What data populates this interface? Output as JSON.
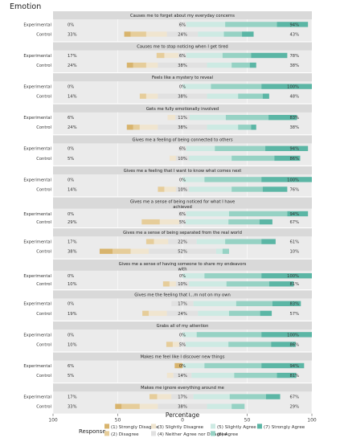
{
  "chart_data": {
    "type": "bar",
    "orientation": "horizontal",
    "stacked": "diverging",
    "title": "Emotion",
    "xlabel": "Percentage",
    "xlim": [
      -100,
      100
    ],
    "xticks": [
      "100",
      "50",
      "0",
      "50",
      "100"
    ],
    "grid": true,
    "legend_position": "bottom",
    "legend_title": "Response",
    "responses": [
      {
        "label": "(1) Strongly Disagree",
        "color": "#d8b46d"
      },
      {
        "label": "(2) Disagree",
        "color": "#e6cd9a"
      },
      {
        "label": "(3) Slightly Disagree",
        "color": "#f0e5cf"
      },
      {
        "label": "(4) Neither Agree nor Disagree",
        "color": "#e1e1e1"
      },
      {
        "label": "(5) Slightly Agree",
        "color": "#cdeae3"
      },
      {
        "label": "(6) Agree",
        "color": "#96d2c4"
      },
      {
        "label": "(7) Strongly Agree",
        "color": "#5bb6a5"
      }
    ],
    "groups": [
      "Experimental",
      "Control"
    ],
    "panels": [
      {
        "title": "Causes me to forget about my everyday concerns",
        "rows": [
          {
            "group": "Experimental",
            "left": "0%",
            "mid": "6%",
            "right": "94%",
            "values": [
              0,
              0,
              0,
              6,
              30,
              40,
              24
            ]
          },
          {
            "group": "Control",
            "left": "33%",
            "mid": "24%",
            "right": "43%",
            "values": [
              5,
              12,
              16,
              24,
              20,
              14,
              9
            ]
          }
        ]
      },
      {
        "title": "Causes me to stop noticing when I get tired",
        "rows": [
          {
            "group": "Experimental",
            "left": "17%",
            "mid": "6%",
            "right": "78%",
            "values": [
              0,
              6,
              11,
              6,
              28,
              22,
              28
            ]
          },
          {
            "group": "Control",
            "left": "24%",
            "mid": "38%",
            "right": "38%",
            "values": [
              5,
              10,
              9,
              38,
              19,
              14,
              5
            ]
          }
        ]
      },
      {
        "title": "Feels like a mystery to reveal",
        "rows": [
          {
            "group": "Experimental",
            "left": "0%",
            "mid": "0%",
            "right": "100%",
            "values": [
              0,
              0,
              0,
              0,
              22,
              39,
              39
            ]
          },
          {
            "group": "Control",
            "left": "14%",
            "mid": "38%",
            "right": "48%",
            "values": [
              0,
              5,
              9,
              38,
              24,
              19,
              5
            ]
          }
        ]
      },
      {
        "title": "Gets me fully emotionally involved",
        "rows": [
          {
            "group": "Experimental",
            "left": "6%",
            "mid": "11%",
            "right": "83%",
            "values": [
              0,
              0,
              6,
              11,
              28,
              33,
              22
            ]
          },
          {
            "group": "Control",
            "left": "24%",
            "mid": "38%",
            "right": "38%",
            "values": [
              5,
              5,
              14,
              38,
              24,
              10,
              4
            ]
          }
        ]
      },
      {
        "title": "Gives me a feeling of being connected to others",
        "rows": [
          {
            "group": "Experimental",
            "left": "0%",
            "mid": "6%",
            "right": "94%",
            "values": [
              0,
              0,
              0,
              6,
              22,
              39,
              33
            ]
          },
          {
            "group": "Control",
            "left": "5%",
            "mid": "10%",
            "right": "86%",
            "values": [
              0,
              0,
              5,
              10,
              33,
              33,
              20
            ]
          }
        ]
      },
      {
        "title": "Gives me a feeling that I want to know what comes next",
        "rows": [
          {
            "group": "Experimental",
            "left": "0%",
            "mid": "0%",
            "right": "100%",
            "values": [
              0,
              0,
              0,
              0,
              17,
              44,
              39
            ]
          },
          {
            "group": "Control",
            "left": "14%",
            "mid": "10%",
            "right": "76%",
            "values": [
              0,
              5,
              9,
              10,
              33,
              24,
              19
            ]
          }
        ]
      },
      {
        "title": "Gives me a sense of being noticed for what I have achieved",
        "rows": [
          {
            "group": "Experimental",
            "left": "0%",
            "mid": "6%",
            "right": "94%",
            "values": [
              0,
              0,
              0,
              6,
              33,
              45,
              16
            ]
          },
          {
            "group": "Control",
            "left": "29%",
            "mid": "5%",
            "right": "67%",
            "values": [
              0,
              14,
              15,
              5,
              33,
              24,
              10
            ]
          }
        ]
      },
      {
        "title": "Gives me a sense of being separated from the real world",
        "rows": [
          {
            "group": "Experimental",
            "left": "17%",
            "mid": "22%",
            "right": "61%",
            "values": [
              0,
              6,
              11,
              22,
              22,
              28,
              11
            ]
          },
          {
            "group": "Control",
            "left": "38%",
            "mid": "52%",
            "right": "10%",
            "values": [
              10,
              14,
              14,
              52,
              5,
              5,
              0
            ]
          }
        ]
      },
      {
        "title": "Gives me a sense of having someone to share my endeavors with",
        "rows": [
          {
            "group": "Experimental",
            "left": "0%",
            "mid": "0%",
            "right": "100%",
            "values": [
              0,
              0,
              0,
              0,
              17,
              44,
              39
            ]
          },
          {
            "group": "Control",
            "left": "10%",
            "mid": "10%",
            "right": "81%",
            "values": [
              0,
              5,
              5,
              10,
              29,
              33,
              19
            ]
          }
        ]
      },
      {
        "title": "Gives me the feeling that I...m not on my own",
        "rows": [
          {
            "group": "Experimental",
            "left": "0%",
            "mid": "17%",
            "right": "83%",
            "values": [
              0,
              0,
              0,
              17,
              33,
              28,
              22
            ]
          },
          {
            "group": "Control",
            "left": "19%",
            "mid": "24%",
            "right": "57%",
            "values": [
              0,
              5,
              14,
              24,
              24,
              24,
              9
            ]
          }
        ]
      },
      {
        "title": "Grabs all of my attention",
        "rows": [
          {
            "group": "Experimental",
            "left": "0%",
            "mid": "0%",
            "right": "100%",
            "values": [
              0,
              0,
              0,
              0,
              11,
              50,
              39
            ]
          },
          {
            "group": "Control",
            "left": "10%",
            "mid": "5%",
            "right": "86%",
            "values": [
              0,
              5,
              5,
              5,
              33,
              33,
              19
            ]
          }
        ]
      },
      {
        "title": "Makes me feel like I discover new things",
        "rows": [
          {
            "group": "Experimental",
            "left": "6%",
            "mid": "0%",
            "right": "94%",
            "values": [
              6,
              0,
              0,
              0,
              17,
              44,
              33
            ]
          },
          {
            "group": "Control",
            "left": "5%",
            "mid": "14%",
            "right": "81%",
            "values": [
              0,
              0,
              5,
              14,
              33,
              33,
              15
            ]
          }
        ]
      },
      {
        "title": "Makes me ignore everything around me",
        "rows": [
          {
            "group": "Experimental",
            "left": "17%",
            "mid": "17%",
            "right": "67%",
            "values": [
              0,
              6,
              11,
              17,
              28,
              28,
              11
            ]
          },
          {
            "group": "Control",
            "left": "33%",
            "mid": "38%",
            "right": "29%",
            "values": [
              5,
              14,
              14,
              38,
              19,
              10,
              0
            ]
          }
        ]
      }
    ]
  }
}
